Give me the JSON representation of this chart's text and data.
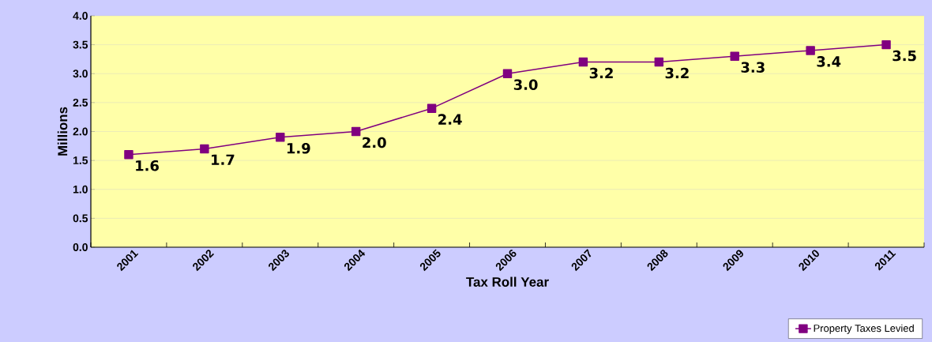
{
  "chart_data": {
    "type": "line",
    "xlabel": "Tax Roll Year",
    "ylabel": "Millions",
    "categories": [
      "2001",
      "2002",
      "2003",
      "2004",
      "2005",
      "2006",
      "2007",
      "2008",
      "2009",
      "2010",
      "2011"
    ],
    "series": [
      {
        "name": "Property Taxes Levied",
        "color": "#800080",
        "values": [
          1.6,
          1.7,
          1.9,
          2.0,
          2.4,
          3.0,
          3.2,
          3.2,
          3.3,
          3.4,
          3.5
        ],
        "value_labels": [
          "1.6",
          "1.7",
          "1.9",
          "2.0",
          "2.4",
          "3.0",
          "3.2",
          "3.2",
          "3.3",
          "3.4",
          "3.5"
        ]
      }
    ],
    "ylim": [
      0,
      4
    ],
    "yticks": [
      {
        "value": 0,
        "label": "0.0"
      },
      {
        "value": 0.5,
        "label": "0.5"
      },
      {
        "value": 1,
        "label": "1.0"
      },
      {
        "value": 1.5,
        "label": "1.5"
      },
      {
        "value": 2,
        "label": "2.0"
      },
      {
        "value": 2.5,
        "label": "2.5"
      },
      {
        "value": 3,
        "label": "3.0"
      },
      {
        "value": 3.5,
        "label": "3.5"
      },
      {
        "value": 4,
        "label": "4.0"
      }
    ],
    "grid": "y",
    "legend": "bottom right",
    "marker": "square",
    "line_style": "solid"
  }
}
